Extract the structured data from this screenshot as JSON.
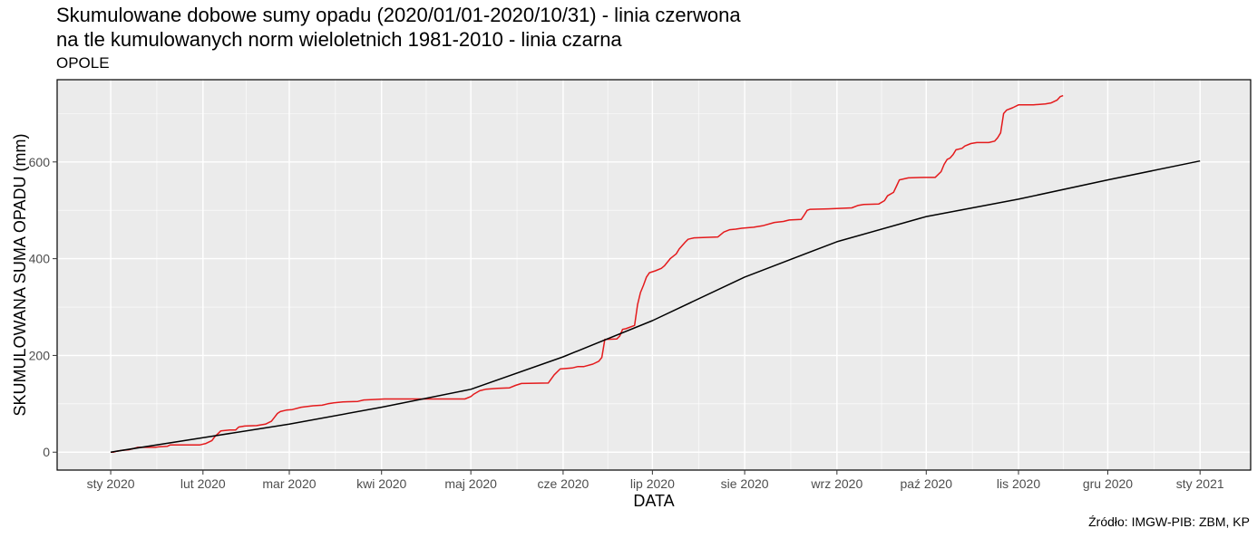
{
  "header": {
    "title_line1": "Skumulowane dobowe sumy opadu (2020/01/01-2020/10/31) - linia czerwona",
    "title_line2": "na tle kumulowanych norm wieloletnich 1981-2010 - linia czarna",
    "station": "OPOLE"
  },
  "footer": {
    "source": "Źródło: IMGW-PIB: ZBM, KP"
  },
  "chart_data": {
    "type": "line",
    "title": "Skumulowane dobowe sumy opadu (2020/01/01-2020/10/31) - linia czerwona na tle kumulowanych norm wieloletnich 1981-2010 - linia czarna",
    "subtitle": "OPOLE",
    "xlabel": "DATA",
    "ylabel": "SKUMULOWANA SUMA OPADU (mm)",
    "x_ticks": [
      "sty 2020",
      "lut 2020",
      "mar 2020",
      "kwi 2020",
      "maj 2020",
      "cze 2020",
      "lip 2020",
      "sie 2020",
      "wrz 2020",
      "paź 2020",
      "lis 2020",
      "gru 2020",
      "sty 2021"
    ],
    "x_tick_dates": [
      "2020-01-01",
      "2020-02-01",
      "2020-03-01",
      "2020-04-01",
      "2020-05-01",
      "2020-06-01",
      "2020-07-01",
      "2020-08-01",
      "2020-09-01",
      "2020-10-01",
      "2020-11-01",
      "2020-12-01",
      "2021-01-01"
    ],
    "y_ticks": [
      0,
      200,
      400,
      600
    ],
    "xlim": [
      "2019-12-14",
      "2021-01-18"
    ],
    "ylim": [
      -37,
      770
    ],
    "grid": true,
    "background": "#ebebeb",
    "series": [
      {
        "color": "#e41a1c",
        "points": [
          [
            "2020-01-01",
            0
          ],
          [
            "2020-01-02",
            0
          ],
          [
            "2020-01-03",
            2
          ],
          [
            "2020-01-05",
            4
          ],
          [
            "2020-01-07",
            5
          ],
          [
            "2020-01-09",
            8
          ],
          [
            "2020-01-10",
            10
          ],
          [
            "2020-01-16",
            10
          ],
          [
            "2020-01-17",
            11
          ],
          [
            "2020-01-20",
            12
          ],
          [
            "2020-01-21",
            15
          ],
          [
            "2020-01-31",
            15
          ],
          [
            "2020-02-02",
            18
          ],
          [
            "2020-02-04",
            24
          ],
          [
            "2020-02-05",
            32
          ],
          [
            "2020-02-06",
            38
          ],
          [
            "2020-02-07",
            44
          ],
          [
            "2020-02-10",
            46
          ],
          [
            "2020-02-12",
            46
          ],
          [
            "2020-02-13",
            52
          ],
          [
            "2020-02-15",
            54
          ],
          [
            "2020-02-19",
            55
          ],
          [
            "2020-02-22",
            58
          ],
          [
            "2020-02-24",
            64
          ],
          [
            "2020-02-25",
            72
          ],
          [
            "2020-02-26",
            80
          ],
          [
            "2020-02-27",
            84
          ],
          [
            "2020-02-29",
            87
          ],
          [
            "2020-03-02",
            88
          ],
          [
            "2020-03-05",
            93
          ],
          [
            "2020-03-09",
            96
          ],
          [
            "2020-03-12",
            97
          ],
          [
            "2020-03-14",
            100
          ],
          [
            "2020-03-16",
            102
          ],
          [
            "2020-03-19",
            104
          ],
          [
            "2020-03-24",
            105
          ],
          [
            "2020-03-26",
            108
          ],
          [
            "2020-03-30",
            109
          ],
          [
            "2020-04-02",
            110
          ],
          [
            "2020-04-29",
            110
          ],
          [
            "2020-05-01",
            115
          ],
          [
            "2020-05-02",
            120
          ],
          [
            "2020-05-04",
            127
          ],
          [
            "2020-05-06",
            130
          ],
          [
            "2020-05-10",
            132
          ],
          [
            "2020-05-14",
            133
          ],
          [
            "2020-05-16",
            138
          ],
          [
            "2020-05-18",
            142
          ],
          [
            "2020-05-27",
            143
          ],
          [
            "2020-05-29",
            160
          ],
          [
            "2020-05-31",
            172
          ],
          [
            "2020-06-04",
            174
          ],
          [
            "2020-06-06",
            177
          ],
          [
            "2020-06-08",
            177
          ],
          [
            "2020-06-11",
            182
          ],
          [
            "2020-06-13",
            188
          ],
          [
            "2020-06-14",
            196
          ],
          [
            "2020-06-15",
            233
          ],
          [
            "2020-06-19",
            234
          ],
          [
            "2020-06-20",
            240
          ],
          [
            "2020-06-21",
            254
          ],
          [
            "2020-06-22",
            255
          ],
          [
            "2020-06-25",
            262
          ],
          [
            "2020-06-26",
            305
          ],
          [
            "2020-06-27",
            330
          ],
          [
            "2020-06-28",
            345
          ],
          [
            "2020-06-29",
            362
          ],
          [
            "2020-06-30",
            371
          ],
          [
            "2020-07-02",
            375
          ],
          [
            "2020-07-04",
            380
          ],
          [
            "2020-07-05",
            385
          ],
          [
            "2020-07-07",
            400
          ],
          [
            "2020-07-09",
            410
          ],
          [
            "2020-07-10",
            420
          ],
          [
            "2020-07-12",
            434
          ],
          [
            "2020-07-13",
            440
          ],
          [
            "2020-07-15",
            443
          ],
          [
            "2020-07-23",
            445
          ],
          [
            "2020-07-25",
            455
          ],
          [
            "2020-07-27",
            460
          ],
          [
            "2020-07-29",
            461
          ],
          [
            "2020-07-31",
            463
          ],
          [
            "2020-08-04",
            465
          ],
          [
            "2020-08-07",
            468
          ],
          [
            "2020-08-11",
            475
          ],
          [
            "2020-08-14",
            477
          ],
          [
            "2020-08-16",
            480
          ],
          [
            "2020-08-20",
            481
          ],
          [
            "2020-08-21",
            490
          ],
          [
            "2020-08-22",
            500
          ],
          [
            "2020-08-23",
            502
          ],
          [
            "2020-08-29",
            503
          ],
          [
            "2020-09-06",
            505
          ],
          [
            "2020-09-08",
            510
          ],
          [
            "2020-09-10",
            512
          ],
          [
            "2020-09-15",
            513
          ],
          [
            "2020-09-17",
            520
          ],
          [
            "2020-09-18",
            530
          ],
          [
            "2020-09-20",
            537
          ],
          [
            "2020-09-21",
            550
          ],
          [
            "2020-09-22",
            563
          ],
          [
            "2020-09-25",
            567
          ],
          [
            "2020-09-30",
            568
          ],
          [
            "2020-10-04",
            568
          ],
          [
            "2020-10-06",
            580
          ],
          [
            "2020-10-07",
            595
          ],
          [
            "2020-10-08",
            605
          ],
          [
            "2020-10-09",
            608
          ],
          [
            "2020-10-10",
            615
          ],
          [
            "2020-10-11",
            625
          ],
          [
            "2020-10-13",
            628
          ],
          [
            "2020-10-14",
            633
          ],
          [
            "2020-10-16",
            638
          ],
          [
            "2020-10-18",
            640
          ],
          [
            "2020-10-22",
            640
          ],
          [
            "2020-10-24",
            643
          ],
          [
            "2020-10-25",
            650
          ],
          [
            "2020-10-26",
            660
          ],
          [
            "2020-10-27",
            700
          ],
          [
            "2020-10-28",
            707
          ],
          [
            "2020-10-30",
            712
          ],
          [
            "2020-11-01",
            718
          ],
          [
            "2020-11-06",
            718
          ],
          [
            "2020-11-10",
            720
          ],
          [
            "2020-11-12",
            722
          ],
          [
            "2020-11-14",
            728
          ],
          [
            "2020-11-15",
            735
          ],
          [
            "2020-11-16",
            737
          ]
        ]
      },
      {
        "color": "#000000",
        "points": [
          [
            "2020-01-01",
            0
          ],
          [
            "2020-02-01",
            30
          ],
          [
            "2020-03-01",
            58
          ],
          [
            "2020-04-01",
            93
          ],
          [
            "2020-05-01",
            130
          ],
          [
            "2020-06-01",
            197
          ],
          [
            "2020-07-01",
            272
          ],
          [
            "2020-08-01",
            362
          ],
          [
            "2020-09-01",
            435
          ],
          [
            "2020-10-01",
            487
          ],
          [
            "2020-11-01",
            523
          ],
          [
            "2020-12-01",
            563
          ],
          [
            "2021-01-01",
            602
          ]
        ]
      }
    ]
  }
}
